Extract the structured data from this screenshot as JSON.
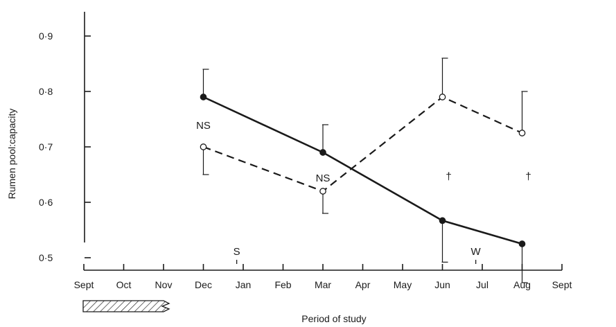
{
  "chart_data": {
    "type": "line",
    "title": "",
    "xlabel": "Period of study",
    "ylabel": "Rumen pool:capacity",
    "x_categories": [
      "Sept",
      "Oct",
      "Nov",
      "Dec",
      "Jan",
      "Feb",
      "Mar",
      "Apr",
      "May",
      "Jun",
      "Jul",
      "Aug",
      "Sept"
    ],
    "ylim": [
      0.45,
      0.9
    ],
    "y_ticks": [
      {
        "value": 0.5,
        "label": "0·5"
      },
      {
        "value": 0.6,
        "label": "0·6"
      },
      {
        "value": 0.7,
        "label": "0·7"
      },
      {
        "value": 0.8,
        "label": "0·8"
      },
      {
        "value": 0.9,
        "label": "0·9"
      }
    ],
    "grid": false,
    "series": [
      {
        "style": "solid",
        "marker": "filled-circle",
        "points": [
          {
            "x": "Dec",
            "y": 0.79,
            "err": 0.05,
            "err_dir": "up"
          },
          {
            "x": "Mar",
            "y": 0.69,
            "err": 0.05,
            "err_dir": "up"
          },
          {
            "x": "Jun",
            "y": 0.567,
            "err": 0.075,
            "err_dir": "down"
          },
          {
            "x": "Aug",
            "y": 0.525,
            "err": 0.07,
            "err_dir": "down"
          }
        ]
      },
      {
        "style": "dashed",
        "marker": "open-circle",
        "points": [
          {
            "x": "Dec",
            "y": 0.7,
            "err": 0.05,
            "err_dir": "down"
          },
          {
            "x": "Mar",
            "y": 0.62,
            "err": 0.04,
            "err_dir": "down"
          },
          {
            "x": "Jun",
            "y": 0.79,
            "err": 0.07,
            "err_dir": "up"
          },
          {
            "x": "Aug",
            "y": 0.725,
            "err": 0.075,
            "err_dir": "up"
          }
        ]
      }
    ],
    "annotations": [
      {
        "text": "NS",
        "x": "Dec",
        "y": 0.74
      },
      {
        "text": "NS",
        "x": "Mar",
        "y": 0.645
      },
      {
        "text": "†",
        "x": "Jun",
        "y": 0.648
      },
      {
        "text": "†",
        "x": "Aug",
        "y": 0.648
      }
    ],
    "event_markers": [
      {
        "text": "S",
        "x_month": "Jan",
        "offset": -0.25
      },
      {
        "text": "W",
        "x_month": "Jul",
        "offset": -0.25
      }
    ]
  }
}
